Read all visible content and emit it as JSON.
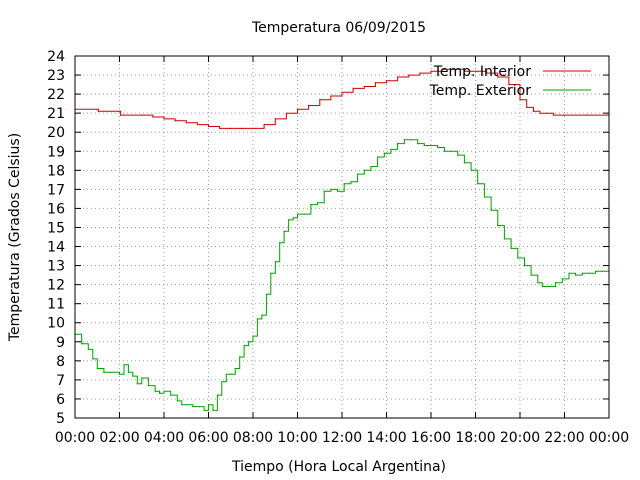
{
  "chart_data": {
    "type": "line",
    "title": "Temperatura 06/09/2015",
    "xlabel": "Tiempo (Hora Local Argentina)",
    "ylabel": "Temperatura (Grados Celsius)",
    "xlim": [
      0,
      24
    ],
    "ylim": [
      5,
      24
    ],
    "xticks": [
      "00:00",
      "02:00",
      "04:00",
      "06:00",
      "08:00",
      "10:00",
      "12:00",
      "14:00",
      "16:00",
      "18:00",
      "20:00",
      "22:00",
      "00:00"
    ],
    "yticks": [
      5,
      6,
      7,
      8,
      9,
      10,
      11,
      12,
      13,
      14,
      15,
      16,
      17,
      18,
      19,
      20,
      21,
      22,
      23,
      24
    ],
    "grid": true,
    "legend_position": "top-right",
    "series": [
      {
        "name": "Temp. Interior",
        "color": "#cc0000",
        "x": [
          0,
          1,
          1.05,
          2,
          2.05,
          3,
          3.5,
          4,
          4.5,
          5,
          5.5,
          6,
          6.5,
          7,
          7.5,
          8,
          8.5,
          9,
          9.5,
          10,
          10.5,
          11,
          11.5,
          12,
          12.5,
          13,
          13.5,
          14,
          14.5,
          15,
          15.5,
          16,
          16.5,
          17,
          17.5,
          18,
          18.5,
          19,
          19.5,
          20,
          20.3,
          20.6,
          20.9,
          21.2,
          21.5,
          22,
          23,
          24
        ],
        "values": [
          21.2,
          21.2,
          21.1,
          21.1,
          20.9,
          20.9,
          20.8,
          20.7,
          20.6,
          20.5,
          20.4,
          20.3,
          20.2,
          20.2,
          20.2,
          20.2,
          20.4,
          20.7,
          21.0,
          21.2,
          21.4,
          21.7,
          21.9,
          22.1,
          22.3,
          22.4,
          22.6,
          22.7,
          22.9,
          23.0,
          23.1,
          23.2,
          23.3,
          23.3,
          23.2,
          23.2,
          23.1,
          22.9,
          22.5,
          21.7,
          21.3,
          21.1,
          21.0,
          21.0,
          20.9,
          20.9,
          20.9,
          20.9
        ]
      },
      {
        "name": "Temp. Exterior",
        "color": "#00a000",
        "x": [
          0,
          0.3,
          0.6,
          0.8,
          1,
          1.3,
          1.6,
          2,
          2.2,
          2.4,
          2.6,
          2.8,
          3,
          3.3,
          3.6,
          3.8,
          4,
          4.3,
          4.6,
          4.8,
          5,
          5.3,
          5.6,
          5.8,
          6,
          6.2,
          6.4,
          6.6,
          6.8,
          7,
          7.2,
          7.4,
          7.6,
          7.8,
          8,
          8.2,
          8.4,
          8.6,
          8.8,
          9,
          9.2,
          9.4,
          9.6,
          9.8,
          10,
          10.3,
          10.6,
          10.9,
          11.2,
          11.5,
          11.8,
          12.1,
          12.4,
          12.7,
          13,
          13.3,
          13.6,
          13.9,
          14.2,
          14.5,
          14.8,
          15.1,
          15.4,
          15.7,
          16,
          16.3,
          16.6,
          16.9,
          17.2,
          17.5,
          17.8,
          18.1,
          18.4,
          18.7,
          19,
          19.3,
          19.6,
          19.9,
          20.2,
          20.5,
          20.8,
          21,
          21.3,
          21.6,
          21.9,
          22.2,
          22.5,
          22.8,
          23.1,
          23.4,
          23.7,
          24
        ],
        "values": [
          9.4,
          8.9,
          8.6,
          8.1,
          7.6,
          7.4,
          7.4,
          7.3,
          7.8,
          7.4,
          7.2,
          6.8,
          7.1,
          6.7,
          6.4,
          6.3,
          6.4,
          6.2,
          5.9,
          5.7,
          5.7,
          5.6,
          5.6,
          5.4,
          5.7,
          5.4,
          6.2,
          6.9,
          7.3,
          7.3,
          7.6,
          8.2,
          8.8,
          9.0,
          9.3,
          10.2,
          10.4,
          11.5,
          12.6,
          13.2,
          14.2,
          14.8,
          15.4,
          15.5,
          15.7,
          15.7,
          16.2,
          16.3,
          16.9,
          17.0,
          16.9,
          17.3,
          17.4,
          17.8,
          18.0,
          18.2,
          18.7,
          18.9,
          19.1,
          19.4,
          19.6,
          19.6,
          19.4,
          19.3,
          19.3,
          19.2,
          19.0,
          19.0,
          18.8,
          18.4,
          18.0,
          17.3,
          16.6,
          15.9,
          15.1,
          14.4,
          13.9,
          13.4,
          13.0,
          12.5,
          12.1,
          11.9,
          11.9,
          12.1,
          12.3,
          12.6,
          12.5,
          12.6,
          12.6,
          12.7,
          12.7,
          12.4
        ]
      }
    ]
  }
}
